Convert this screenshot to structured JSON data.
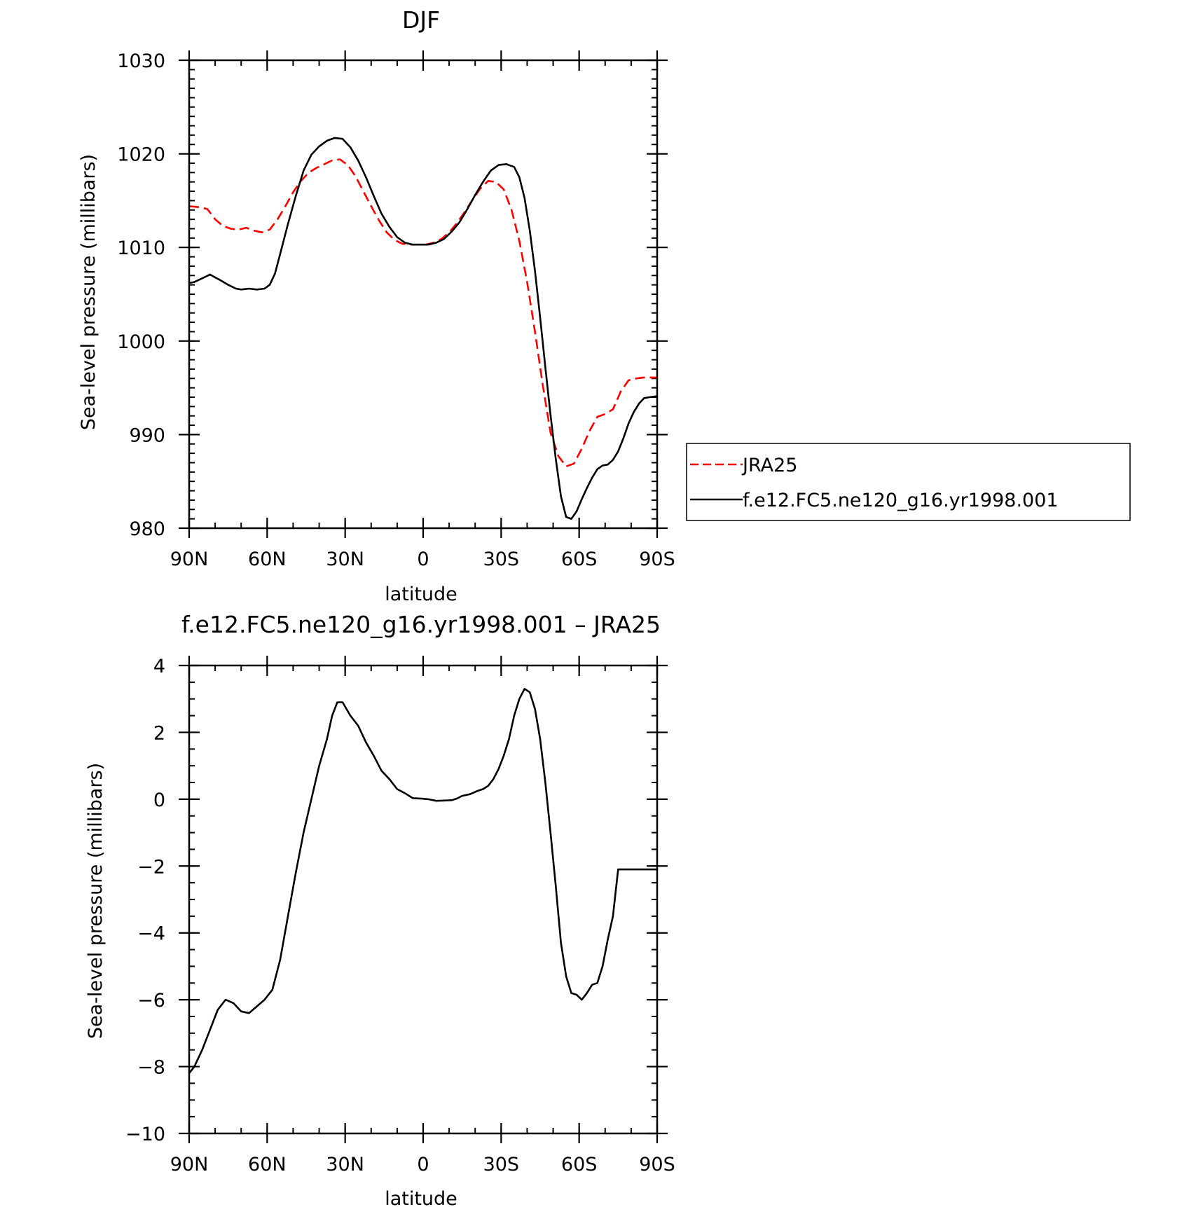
{
  "chart_data": [
    {
      "type": "line",
      "title": "DJF",
      "xlabel": "latitude",
      "ylabel": "Sea-level pressure (millibars)",
      "xlim": [
        90,
        -90
      ],
      "ylim": [
        980,
        1030
      ],
      "xticks": [
        {
          "value": 90,
          "label": "90N"
        },
        {
          "value": 60,
          "label": "60N"
        },
        {
          "value": 30,
          "label": "30N"
        },
        {
          "value": 0,
          "label": "0"
        },
        {
          "value": -30,
          "label": "30S"
        },
        {
          "value": -60,
          "label": "60S"
        },
        {
          "value": -90,
          "label": "90S"
        }
      ],
      "yticks": [
        {
          "value": 1030,
          "label": "1030"
        },
        {
          "value": 1020,
          "label": "1020"
        },
        {
          "value": 1010,
          "label": "1010"
        },
        {
          "value": 1000,
          "label": "1000"
        },
        {
          "value": 990,
          "label": "990"
        },
        {
          "value": 980,
          "label": "980"
        }
      ],
      "legend": "right",
      "series": [
        {
          "name": "JRA25",
          "color": "#ff0000",
          "dash": "dashed",
          "x": [
            90,
            86,
            83,
            80,
            77,
            74,
            71,
            68,
            65,
            62,
            59,
            56,
            53,
            50,
            47,
            44,
            41,
            38,
            35,
            32,
            29,
            26,
            23,
            20,
            17,
            14,
            11,
            8,
            5,
            2,
            -1,
            -4,
            -7,
            -10,
            -13,
            -16,
            -19,
            -22,
            -25,
            -28,
            -31,
            -34,
            -37,
            -40,
            -43,
            -46,
            -49,
            -52,
            -55,
            -58,
            -61,
            -64,
            -67,
            -70,
            -73,
            -76,
            -79,
            -82,
            -85,
            -88,
            -90
          ],
          "y": [
            1014.4,
            1014.3,
            1014.1,
            1013.0,
            1012.3,
            1012.0,
            1011.9,
            1012.1,
            1011.8,
            1011.6,
            1011.9,
            1013.0,
            1014.4,
            1015.9,
            1017.1,
            1018.0,
            1018.5,
            1018.9,
            1019.3,
            1019.4,
            1018.8,
            1017.6,
            1016.0,
            1014.4,
            1012.9,
            1011.6,
            1010.8,
            1010.4,
            1010.3,
            1010.3,
            1010.3,
            1010.5,
            1010.9,
            1011.6,
            1012.6,
            1013.8,
            1015.1,
            1016.3,
            1017.1,
            1017.0,
            1016.2,
            1014.0,
            1010.7,
            1006.3,
            1001.0,
            995.3,
            990.2,
            987.7,
            986.6,
            986.9,
            988.5,
            990.4,
            991.9,
            992.2,
            992.7,
            994.6,
            995.8,
            996.0,
            996.1,
            996.1,
            996.1
          ]
        },
        {
          "name": "f.e12.FC5.ne120_g16.yr1998.001",
          "color": "#000000",
          "dash": "solid",
          "x": [
            90,
            88,
            85,
            82,
            80,
            78,
            75,
            72,
            70,
            67,
            64,
            61,
            59,
            57,
            55,
            52,
            49,
            46,
            43,
            40,
            37,
            34,
            31,
            28,
            25,
            22,
            19,
            16,
            13,
            10,
            7,
            4,
            1,
            -2,
            -5,
            -8,
            -11,
            -14,
            -17,
            -20,
            -23,
            -26,
            -29,
            -32,
            -35,
            -37,
            -39,
            -41,
            -43,
            -45,
            -47,
            -49,
            -51,
            -53,
            -55,
            -57,
            -59,
            -61,
            -63,
            -65,
            -67,
            -69,
            -71,
            -73,
            -75,
            -77,
            -79,
            -81,
            -83,
            -85,
            -87,
            -90
          ],
          "y": [
            1006.2,
            1006.3,
            1006.7,
            1007.1,
            1006.8,
            1006.5,
            1006.0,
            1005.6,
            1005.5,
            1005.6,
            1005.5,
            1005.6,
            1006.0,
            1007.2,
            1009.3,
            1012.5,
            1015.5,
            1018.2,
            1019.9,
            1020.8,
            1021.4,
            1021.7,
            1021.6,
            1020.7,
            1019.3,
            1017.5,
            1015.5,
            1013.6,
            1012.2,
            1011.1,
            1010.5,
            1010.3,
            1010.3,
            1010.3,
            1010.5,
            1010.9,
            1011.7,
            1012.7,
            1014.1,
            1015.6,
            1017.0,
            1018.2,
            1018.8,
            1018.9,
            1018.6,
            1017.5,
            1015.3,
            1011.8,
            1007.5,
            1002.5,
            997.2,
            992.1,
            987.4,
            983.4,
            981.2,
            981.0,
            981.8,
            983.1,
            984.3,
            985.4,
            986.3,
            986.7,
            986.8,
            987.3,
            988.2,
            989.6,
            991.2,
            992.4,
            993.3,
            993.9,
            994.0,
            994.1
          ]
        }
      ]
    },
    {
      "type": "line",
      "title": "f.e12.FC5.ne120_g16.yr1998.001 – JRA25",
      "xlabel": "latitude",
      "ylabel": "Sea-level pressure (millibars)",
      "xlim": [
        90,
        -90
      ],
      "ylim": [
        -10,
        4
      ],
      "xticks": [
        {
          "value": 90,
          "label": "90N"
        },
        {
          "value": 60,
          "label": "60N"
        },
        {
          "value": 30,
          "label": "30N"
        },
        {
          "value": 0,
          "label": "0"
        },
        {
          "value": -30,
          "label": "30S"
        },
        {
          "value": -60,
          "label": "60S"
        },
        {
          "value": -90,
          "label": "90S"
        }
      ],
      "yticks": [
        {
          "value": 4,
          "label": "4"
        },
        {
          "value": 2,
          "label": "2"
        },
        {
          "value": 0,
          "label": "0"
        },
        {
          "value": -2,
          "label": "−2"
        },
        {
          "value": -4,
          "label": "−4"
        },
        {
          "value": -6,
          "label": "−6"
        },
        {
          "value": -8,
          "label": "−8"
        },
        {
          "value": -10,
          "label": "−10"
        }
      ],
      "series": [
        {
          "color": "#000000",
          "dash": "solid",
          "x": [
            90,
            88,
            85,
            82,
            79,
            76,
            73,
            70,
            67,
            64,
            61,
            58,
            55,
            52,
            49,
            46,
            43,
            40,
            37,
            35,
            33,
            31,
            28,
            25,
            22,
            19,
            16,
            13,
            10,
            7,
            4,
            1,
            -2,
            -5,
            -8,
            -11,
            -13,
            -15,
            -18,
            -21,
            -23,
            -25,
            -27,
            -29,
            -31,
            -33,
            -35,
            -37,
            -39,
            -41,
            -43,
            -45,
            -47,
            -49,
            -51,
            -53,
            -55,
            -57,
            -59,
            -61,
            -63,
            -65,
            -67,
            -69,
            -71,
            -73,
            -75,
            -77,
            -79,
            -81,
            -83,
            -85,
            -87,
            -89,
            -90
          ],
          "y": [
            -8.2,
            -8.0,
            -7.5,
            -6.9,
            -6.3,
            -6.0,
            -6.1,
            -6.35,
            -6.4,
            -6.2,
            -6.0,
            -5.7,
            -4.8,
            -3.5,
            -2.2,
            -1.0,
            0.0,
            1.0,
            1.8,
            2.5,
            2.9,
            2.9,
            2.5,
            2.2,
            1.7,
            1.3,
            0.85,
            0.6,
            0.3,
            0.18,
            0.03,
            0.02,
            0.0,
            -0.05,
            -0.04,
            -0.03,
            0.02,
            0.1,
            0.15,
            0.25,
            0.3,
            0.4,
            0.6,
            0.9,
            1.3,
            1.8,
            2.5,
            3.0,
            3.3,
            3.2,
            2.7,
            1.8,
            0.5,
            -1.0,
            -2.6,
            -4.3,
            -5.3,
            -5.8,
            -5.85,
            -6.0,
            -5.8,
            -5.55,
            -5.5,
            -5.0,
            -4.2,
            -3.5,
            -2.1,
            -2.1,
            -2.1,
            -2.1,
            -2.1,
            -2.1,
            -2.1,
            -2.1,
            -2.1
          ]
        }
      ]
    }
  ]
}
